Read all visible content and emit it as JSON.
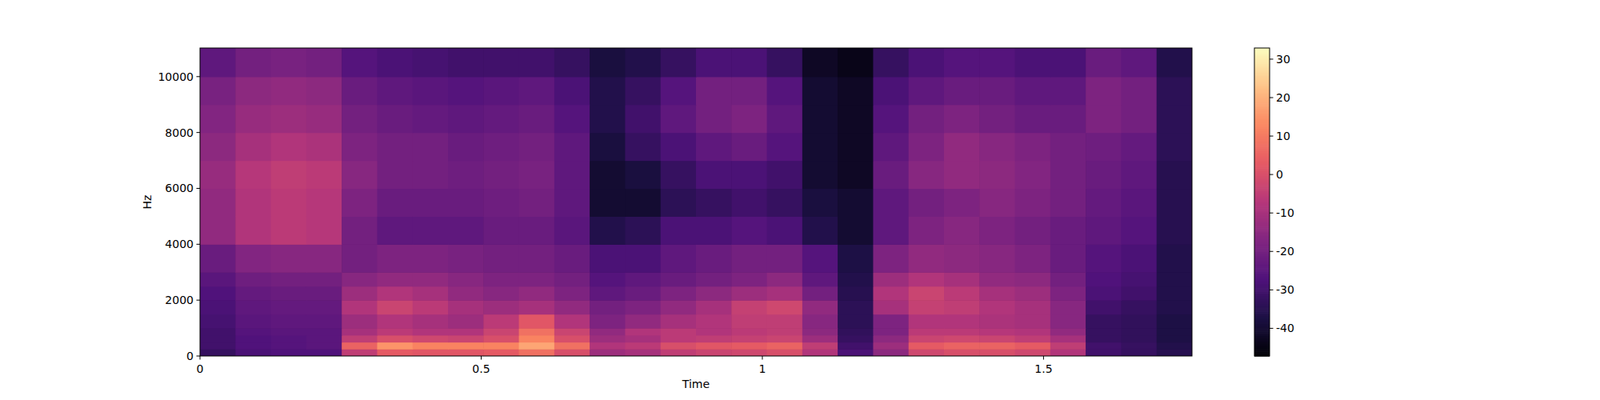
{
  "chart_data": {
    "type": "heatmap",
    "x_label": "Time",
    "y_label": "Hz",
    "xlim": [
      0,
      1.764
    ],
    "ylim": [
      0,
      11025
    ],
    "xticks": [
      0,
      0.5,
      1,
      1.5
    ],
    "yticks": [
      0,
      2000,
      4000,
      6000,
      8000,
      10000
    ],
    "x_edges": [
      0,
      0.063,
      0.126,
      0.189,
      0.252,
      0.315,
      0.378,
      0.441,
      0.504,
      0.567,
      0.63,
      0.693,
      0.756,
      0.819,
      0.882,
      0.945,
      1.008,
      1.071,
      1.134,
      1.197,
      1.26,
      1.323,
      1.386,
      1.449,
      1.512,
      1.575,
      1.638,
      1.701,
      1.764
    ],
    "y_edges": [
      0,
      250,
      500,
      750,
      1000,
      1500,
      2000,
      2500,
      3000,
      4000,
      5000,
      6000,
      7000,
      8000,
      9000,
      10000,
      11025
    ],
    "cells": [
      [
        -32,
        -28,
        -27,
        -27,
        -5,
        3,
        2,
        2,
        3,
        8,
        0,
        -12,
        -10,
        -5,
        -3,
        -2,
        0,
        -8,
        -28,
        -15,
        -2,
        0,
        0,
        -2,
        -8,
        -30,
        -32,
        -35
      ],
      [
        -30,
        -27,
        -26,
        -25,
        5,
        15,
        12,
        12,
        12,
        18,
        8,
        -8,
        -6,
        0,
        2,
        3,
        5,
        -5,
        -30,
        -12,
        3,
        5,
        5,
        3,
        -5,
        -30,
        -32,
        -36
      ],
      [
        -30,
        -27,
        -26,
        -25,
        -5,
        0,
        -2,
        -3,
        0,
        12,
        0,
        -12,
        -10,
        -6,
        -5,
        -4,
        -3,
        -12,
        -32,
        -15,
        -3,
        -2,
        -3,
        -5,
        -10,
        -32,
        -33,
        -37
      ],
      [
        -30,
        -26,
        -25,
        -25,
        -10,
        -6,
        -8,
        -8,
        -3,
        8,
        -3,
        -14,
        -8,
        -6,
        -8,
        -6,
        -5,
        -15,
        -33,
        -18,
        -6,
        -6,
        -7,
        -8,
        -14,
        -32,
        -33,
        -37
      ],
      [
        -29,
        -25,
        -24,
        -24,
        -12,
        -8,
        -10,
        -12,
        -6,
        2,
        -8,
        -18,
        -14,
        -10,
        -8,
        -5,
        -5,
        -16,
        -34,
        -18,
        -8,
        -8,
        -9,
        -10,
        -16,
        -32,
        -33,
        -37
      ],
      [
        -28,
        -24,
        -23,
        -23,
        -8,
        -3,
        -6,
        -10,
        -12,
        -10,
        -14,
        -20,
        -18,
        -14,
        -10,
        -4,
        -2,
        -14,
        -34,
        -10,
        -4,
        -5,
        -8,
        -10,
        -16,
        -30,
        -32,
        -36
      ],
      [
        -27,
        -23,
        -22,
        -22,
        -12,
        -8,
        -10,
        -14,
        -16,
        -14,
        -18,
        -24,
        -22,
        -18,
        -15,
        -12,
        -10,
        -20,
        -35,
        -8,
        -3,
        -6,
        -10,
        -12,
        -18,
        -28,
        -30,
        -36
      ],
      [
        -25,
        -21,
        -20,
        -20,
        -16,
        -14,
        -14,
        -16,
        -18,
        -18,
        -20,
        -26,
        -24,
        -22,
        -20,
        -18,
        -15,
        -24,
        -36,
        -12,
        -8,
        -10,
        -14,
        -15,
        -20,
        -27,
        -29,
        -36
      ],
      [
        -22,
        -17,
        -16,
        -16,
        -20,
        -18,
        -18,
        -19,
        -20,
        -20,
        -22,
        -28,
        -28,
        -24,
        -22,
        -20,
        -20,
        -26,
        -37,
        -18,
        -14,
        -15,
        -16,
        -18,
        -22,
        -26,
        -28,
        -36
      ],
      [
        -14,
        -8,
        -6,
        -7,
        -20,
        -24,
        -24,
        -24,
        -22,
        -22,
        -25,
        -36,
        -34,
        -28,
        -28,
        -26,
        -28,
        -36,
        -40,
        -24,
        -18,
        -16,
        -18,
        -20,
        -22,
        -24,
        -26,
        -35
      ],
      [
        -14,
        -8,
        -6,
        -7,
        -18,
        -22,
        -22,
        -22,
        -21,
        -20,
        -24,
        -40,
        -40,
        -34,
        -32,
        -30,
        -32,
        -38,
        -40,
        -24,
        -20,
        -18,
        -16,
        -18,
        -20,
        -23,
        -25,
        -35
      ],
      [
        -13,
        -7,
        -5,
        -6,
        -16,
        -20,
        -20,
        -21,
        -20,
        -19,
        -24,
        -40,
        -38,
        -32,
        -28,
        -28,
        -30,
        -40,
        -42,
        -22,
        -16,
        -14,
        -15,
        -17,
        -20,
        -22,
        -24,
        -35
      ],
      [
        -15,
        -10,
        -8,
        -9,
        -18,
        -20,
        -20,
        -22,
        -21,
        -20,
        -24,
        -38,
        -32,
        -28,
        -24,
        -22,
        -26,
        -40,
        -42,
        -24,
        -18,
        -14,
        -16,
        -18,
        -20,
        -21,
        -23,
        -34
      ],
      [
        -17,
        -13,
        -12,
        -13,
        -20,
        -22,
        -23,
        -24,
        -23,
        -22,
        -26,
        -36,
        -30,
        -24,
        -20,
        -18,
        -24,
        -40,
        -42,
        -26,
        -20,
        -18,
        -20,
        -22,
        -22,
        -18,
        -20,
        -34
      ],
      [
        -19,
        -15,
        -14,
        -15,
        -22,
        -24,
        -25,
        -26,
        -25,
        -24,
        -28,
        -36,
        -32,
        -26,
        -20,
        -20,
        -26,
        -40,
        -42,
        -28,
        -24,
        -22,
        -22,
        -24,
        -24,
        -18,
        -20,
        -34
      ],
      [
        -24,
        -20,
        -19,
        -20,
        -26,
        -28,
        -29,
        -30,
        -30,
        -30,
        -32,
        -38,
        -36,
        -32,
        -28,
        -28,
        -32,
        -42,
        -44,
        -32,
        -28,
        -26,
        -26,
        -28,
        -28,
        -22,
        -24,
        -36
      ]
    ],
    "colorbar_range": [
      -47.2,
      32.9
    ],
    "colorbar_ticks": [
      -40,
      -30,
      -20,
      -10,
      0,
      10,
      20,
      30
    ]
  }
}
